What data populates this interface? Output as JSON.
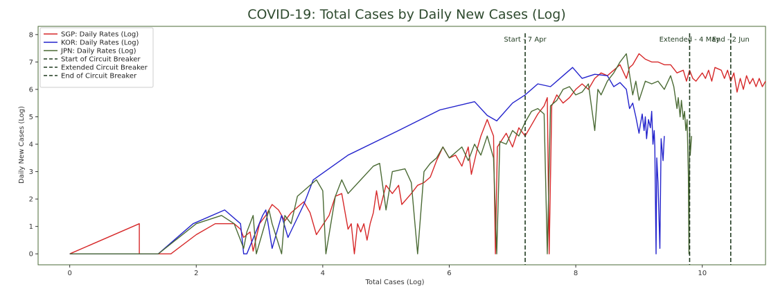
{
  "chart_data": {
    "type": "line",
    "title": "COVID-19: Total Cases by Daily New Cases (Log)",
    "xlabel": "Total Cases (Log)",
    "ylabel": "Daily New Cases (Log)",
    "xlim": [
      -0.5,
      11.0
    ],
    "ylim": [
      -0.4,
      8.3
    ],
    "xticks": [
      0,
      2,
      4,
      6,
      8,
      10
    ],
    "yticks": [
      0,
      1,
      2,
      3,
      4,
      5,
      6,
      7,
      8
    ],
    "grid": false,
    "legend_position": "top-left",
    "series": [
      {
        "name": "SGP: Daily Rates (Log)",
        "color": "#d62728",
        "points": [
          [
            0,
            0
          ],
          [
            1.1,
            1.1
          ],
          [
            1.1,
            0
          ],
          [
            1.4,
            0
          ],
          [
            1.6,
            0
          ],
          [
            2.0,
            0.7
          ],
          [
            2.3,
            1.1
          ],
          [
            2.6,
            1.1
          ],
          [
            2.7,
            0.9
          ],
          [
            2.75,
            0.6
          ],
          [
            2.85,
            0.8
          ],
          [
            2.9,
            0.1
          ],
          [
            3.0,
            1.1
          ],
          [
            3.1,
            1.4
          ],
          [
            3.2,
            1.8
          ],
          [
            3.3,
            1.6
          ],
          [
            3.4,
            1.2
          ],
          [
            3.5,
            1.5
          ],
          [
            3.7,
            1.9
          ],
          [
            3.8,
            1.5
          ],
          [
            3.9,
            0.7
          ],
          [
            4.1,
            1.4
          ],
          [
            4.2,
            2.1
          ],
          [
            4.3,
            2.2
          ],
          [
            4.4,
            0.9
          ],
          [
            4.45,
            1.1
          ],
          [
            4.5,
            0
          ],
          [
            4.55,
            1.1
          ],
          [
            4.6,
            0.8
          ],
          [
            4.65,
            1.1
          ],
          [
            4.7,
            0.5
          ],
          [
            4.75,
            1.1
          ],
          [
            4.8,
            1.5
          ],
          [
            4.85,
            2.3
          ],
          [
            4.9,
            1.6
          ],
          [
            5.0,
            2.5
          ],
          [
            5.1,
            2.2
          ],
          [
            5.2,
            2.5
          ],
          [
            5.25,
            1.8
          ],
          [
            5.4,
            2.2
          ],
          [
            5.5,
            2.5
          ],
          [
            5.6,
            2.6
          ],
          [
            5.7,
            2.8
          ],
          [
            5.8,
            3.4
          ],
          [
            5.9,
            3.9
          ],
          [
            6.0,
            3.5
          ],
          [
            6.1,
            3.6
          ],
          [
            6.2,
            3.2
          ],
          [
            6.3,
            3.9
          ],
          [
            6.35,
            2.9
          ],
          [
            6.45,
            3.9
          ],
          [
            6.5,
            4.3
          ],
          [
            6.6,
            4.9
          ],
          [
            6.65,
            4.6
          ],
          [
            6.7,
            4.3
          ],
          [
            6.73,
            0
          ],
          [
            6.76,
            3.9
          ],
          [
            6.9,
            4.4
          ],
          [
            7.0,
            3.9
          ],
          [
            7.1,
            4.6
          ],
          [
            7.2,
            4.3
          ],
          [
            7.3,
            4.7
          ],
          [
            7.4,
            5.1
          ],
          [
            7.5,
            5.4
          ],
          [
            7.55,
            5.7
          ],
          [
            7.58,
            0
          ],
          [
            7.62,
            5.4
          ],
          [
            7.7,
            5.8
          ],
          [
            7.8,
            5.5
          ],
          [
            7.9,
            5.7
          ],
          [
            8.0,
            6.0
          ],
          [
            8.1,
            6.2
          ],
          [
            8.2,
            6.0
          ],
          [
            8.3,
            6.4
          ],
          [
            8.4,
            6.6
          ],
          [
            8.5,
            6.5
          ],
          [
            8.6,
            6.7
          ],
          [
            8.7,
            6.9
          ],
          [
            8.8,
            6.4
          ],
          [
            8.85,
            6.8
          ],
          [
            8.9,
            6.9
          ],
          [
            9.0,
            7.3
          ],
          [
            9.1,
            7.1
          ],
          [
            9.2,
            7.0
          ],
          [
            9.3,
            7.0
          ],
          [
            9.4,
            6.9
          ],
          [
            9.5,
            6.9
          ],
          [
            9.6,
            6.6
          ],
          [
            9.7,
            6.7
          ],
          [
            9.75,
            6.3
          ],
          [
            9.8,
            6.7
          ],
          [
            9.85,
            6.4
          ],
          [
            9.9,
            6.3
          ],
          [
            10.0,
            6.6
          ],
          [
            10.05,
            6.4
          ],
          [
            10.1,
            6.7
          ],
          [
            10.15,
            6.3
          ],
          [
            10.2,
            6.8
          ],
          [
            10.3,
            6.7
          ],
          [
            10.35,
            6.4
          ],
          [
            10.4,
            6.7
          ],
          [
            10.45,
            6.3
          ],
          [
            10.5,
            6.6
          ],
          [
            10.55,
            5.9
          ],
          [
            10.6,
            6.4
          ],
          [
            10.65,
            6.0
          ],
          [
            10.7,
            6.5
          ],
          [
            10.75,
            6.2
          ],
          [
            10.8,
            6.4
          ],
          [
            10.85,
            6.1
          ],
          [
            10.9,
            6.4
          ],
          [
            10.95,
            6.1
          ],
          [
            11.0,
            6.3
          ]
        ]
      },
      {
        "name": "KOR: Daily Rates (Log)",
        "color": "#2222cc",
        "points": [
          [
            0,
            0
          ],
          [
            1.4,
            0
          ],
          [
            1.95,
            1.1
          ],
          [
            2.45,
            1.6
          ],
          [
            2.7,
            1.1
          ],
          [
            2.75,
            0
          ],
          [
            2.8,
            0
          ],
          [
            3.05,
            1.4
          ],
          [
            3.1,
            1.6
          ],
          [
            3.2,
            0.2
          ],
          [
            3.35,
            1.4
          ],
          [
            3.45,
            0.6
          ],
          [
            3.7,
            1.8
          ],
          [
            3.85,
            2.7
          ],
          [
            4.4,
            3.6
          ],
          [
            5.2,
            4.5
          ],
          [
            5.85,
            5.25
          ],
          [
            6.4,
            5.55
          ],
          [
            6.6,
            5.05
          ],
          [
            6.75,
            4.85
          ],
          [
            7.0,
            5.5
          ],
          [
            7.2,
            5.8
          ],
          [
            7.4,
            6.2
          ],
          [
            7.6,
            6.1
          ],
          [
            7.8,
            6.5
          ],
          [
            7.95,
            6.8
          ],
          [
            8.1,
            6.4
          ],
          [
            8.3,
            6.55
          ],
          [
            8.5,
            6.5
          ],
          [
            8.6,
            6.1
          ],
          [
            8.7,
            6.25
          ],
          [
            8.8,
            6.0
          ],
          [
            8.85,
            5.3
          ],
          [
            8.9,
            5.5
          ],
          [
            8.95,
            5.0
          ],
          [
            9.0,
            4.4
          ],
          [
            9.02,
            4.7
          ],
          [
            9.05,
            5.1
          ],
          [
            9.08,
            4.5
          ],
          [
            9.1,
            5.0
          ],
          [
            9.12,
            4.2
          ],
          [
            9.15,
            4.9
          ],
          [
            9.18,
            4.6
          ],
          [
            9.2,
            5.2
          ],
          [
            9.22,
            4.0
          ],
          [
            9.24,
            4.5
          ],
          [
            9.25,
            3.9
          ],
          [
            9.27,
            0
          ],
          [
            9.28,
            3.5
          ],
          [
            9.3,
            2.6
          ],
          [
            9.33,
            0.2
          ],
          [
            9.35,
            4.2
          ],
          [
            9.38,
            3.4
          ],
          [
            9.4,
            4.3
          ]
        ]
      },
      {
        "name": "JPN: Daily Rates (Log)",
        "color": "#4a6a34",
        "points": [
          [
            0,
            0
          ],
          [
            1.4,
            0
          ],
          [
            2.0,
            1.1
          ],
          [
            2.4,
            1.4
          ],
          [
            2.6,
            1.1
          ],
          [
            2.7,
            0.5
          ],
          [
            2.75,
            0.2
          ],
          [
            2.8,
            0.8
          ],
          [
            2.9,
            1.4
          ],
          [
            2.95,
            0
          ],
          [
            3.15,
            1.6
          ],
          [
            3.2,
            1.1
          ],
          [
            3.35,
            0
          ],
          [
            3.4,
            1.4
          ],
          [
            3.5,
            1.1
          ],
          [
            3.6,
            2.1
          ],
          [
            3.9,
            2.7
          ],
          [
            4.0,
            2.3
          ],
          [
            4.05,
            0
          ],
          [
            4.2,
            2.1
          ],
          [
            4.3,
            2.7
          ],
          [
            4.4,
            2.2
          ],
          [
            4.6,
            2.7
          ],
          [
            4.8,
            3.2
          ],
          [
            4.9,
            3.3
          ],
          [
            5.0,
            1.6
          ],
          [
            5.1,
            3.0
          ],
          [
            5.3,
            3.1
          ],
          [
            5.4,
            2.6
          ],
          [
            5.5,
            0
          ],
          [
            5.6,
            3.0
          ],
          [
            5.7,
            3.3
          ],
          [
            5.8,
            3.5
          ],
          [
            5.9,
            3.9
          ],
          [
            6.0,
            3.5
          ],
          [
            6.2,
            3.9
          ],
          [
            6.3,
            3.4
          ],
          [
            6.4,
            4.0
          ],
          [
            6.5,
            3.6
          ],
          [
            6.6,
            4.3
          ],
          [
            6.7,
            3.5
          ],
          [
            6.75,
            0
          ],
          [
            6.8,
            4.1
          ],
          [
            6.9,
            4.0
          ],
          [
            7.0,
            4.5
          ],
          [
            7.1,
            4.3
          ],
          [
            7.2,
            4.8
          ],
          [
            7.3,
            5.2
          ],
          [
            7.4,
            5.3
          ],
          [
            7.5,
            5.1
          ],
          [
            7.55,
            0
          ],
          [
            7.6,
            5.4
          ],
          [
            7.7,
            5.6
          ],
          [
            7.8,
            6.0
          ],
          [
            7.9,
            6.1
          ],
          [
            8.0,
            5.8
          ],
          [
            8.1,
            5.9
          ],
          [
            8.2,
            6.2
          ],
          [
            8.3,
            4.5
          ],
          [
            8.35,
            6.0
          ],
          [
            8.4,
            5.8
          ],
          [
            8.5,
            6.3
          ],
          [
            8.6,
            6.6
          ],
          [
            8.7,
            7.0
          ],
          [
            8.8,
            7.3
          ],
          [
            8.9,
            5.8
          ],
          [
            8.95,
            6.3
          ],
          [
            9.0,
            5.6
          ],
          [
            9.1,
            6.3
          ],
          [
            9.2,
            6.2
          ],
          [
            9.3,
            6.3
          ],
          [
            9.4,
            6.0
          ],
          [
            9.5,
            6.5
          ],
          [
            9.55,
            6.1
          ],
          [
            9.6,
            5.3
          ],
          [
            9.62,
            5.7
          ],
          [
            9.65,
            5.0
          ],
          [
            9.67,
            5.6
          ],
          [
            9.7,
            4.9
          ],
          [
            9.72,
            5.2
          ],
          [
            9.74,
            4.5
          ],
          [
            9.76,
            4.9
          ],
          [
            9.78,
            2.9
          ],
          [
            9.79,
            0
          ],
          [
            9.8,
            4.6
          ],
          [
            9.81,
            3.6
          ],
          [
            9.83,
            4.3
          ]
        ]
      }
    ],
    "vlines": [
      {
        "name": "Start of Circuit Breaker",
        "x": 7.2,
        "label": "Start - 7 Apr",
        "color": "#1f3a1f"
      },
      {
        "name": "Extended Circuit Breaker",
        "x": 9.8,
        "label": "Extended - 4 May",
        "color": "#1f3a1f"
      },
      {
        "name": "End of Circuit Breaker",
        "x": 10.45,
        "label": "End - 2 Jun",
        "color": "#1f3a1f"
      }
    ]
  }
}
